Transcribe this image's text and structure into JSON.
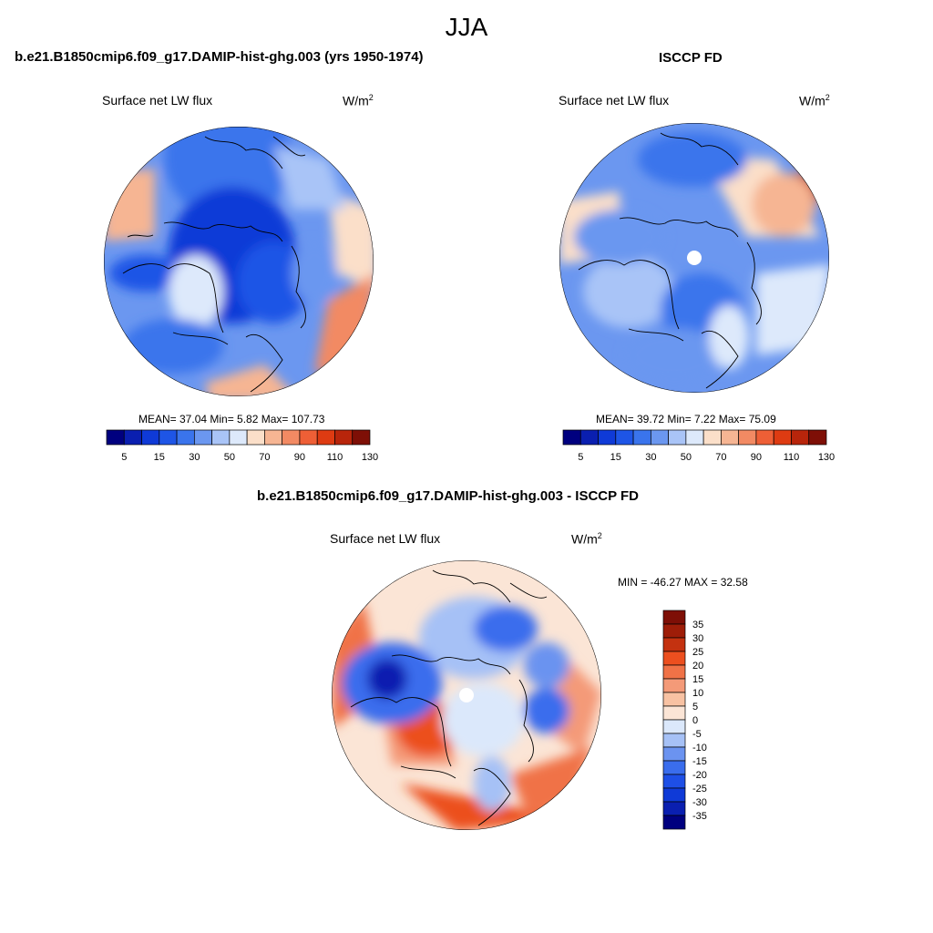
{
  "figure": {
    "season": "JJA",
    "colors": {
      "scale_13": [
        "#00007f",
        "#0a1fb0",
        "#0f3ad7",
        "#1e55e6",
        "#3a74ec",
        "#6b97f0",
        "#a9c4f7",
        "#dde9fb",
        "#fbdfc9",
        "#f6b593",
        "#f28a63",
        "#ee5f36",
        "#de3b12",
        "#b8250b",
        "#7e0f06"
      ],
      "diff_scale": [
        "#00007f",
        "#0a1fb0",
        "#0f3ad7",
        "#1e4fe6",
        "#3a6ded",
        "#6b93f0",
        "#a6c1f6",
        "#dbe8fb",
        "#fbe5d6",
        "#f8c2a3",
        "#f49a78",
        "#f07247",
        "#ec4f1f",
        "#c43210",
        "#9e1d08",
        "#7e0f06"
      ]
    },
    "panels": [
      {
        "title": "b.e21.B1850cmip6.f09_g17.DAMIP-hist-ghg.003 (yrs 1950-1974)",
        "variable": "Surface net LW flux",
        "units": "W/m",
        "units_sup": "2",
        "stats": "MEAN=  37.04  Min=   5.82  Max= 107.73",
        "colorbar_labels": [
          "5",
          "15",
          "30",
          "50",
          "70",
          "90",
          "110",
          "130"
        ]
      },
      {
        "title": "ISCCP FD",
        "variable": "Surface net LW flux",
        "units": "W/m",
        "units_sup": "2",
        "stats": "MEAN=  39.72  Min=   7.22  Max=  75.09",
        "colorbar_labels": [
          "5",
          "15",
          "30",
          "50",
          "70",
          "90",
          "110",
          "130"
        ]
      }
    ],
    "diff_panel": {
      "title": "b.e21.B1850cmip6.f09_g17.DAMIP-hist-ghg.003 - ISCCP FD",
      "variable": "Surface net LW flux",
      "units": "W/m",
      "units_sup": "2",
      "stats": "MIN = -46.27 MAX =  32.58",
      "colorbar_labels": [
        "35",
        "30",
        "25",
        "20",
        "15",
        "10",
        "5",
        "0",
        "-5",
        "-10",
        "-15",
        "-20",
        "-25",
        "-30",
        "-35"
      ]
    }
  }
}
